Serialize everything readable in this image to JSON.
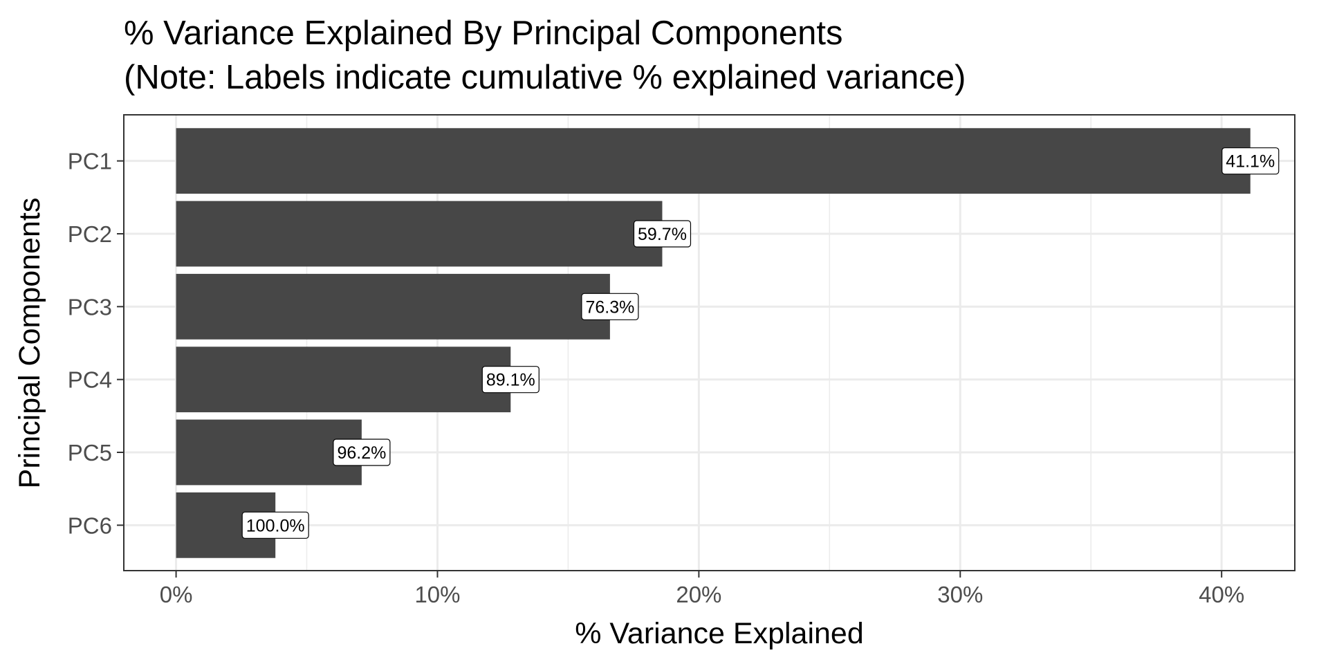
{
  "chart_data": {
    "type": "bar",
    "orientation": "horizontal",
    "title": "% Variance Explained By Principal Components",
    "subtitle": "(Note: Labels indicate cumulative % explained variance)",
    "xlabel": "% Variance Explained",
    "ylabel": "Principal Components",
    "categories": [
      "PC1",
      "PC2",
      "PC3",
      "PC4",
      "PC5",
      "PC6"
    ],
    "values": [
      41.1,
      18.6,
      16.6,
      12.8,
      7.1,
      3.8
    ],
    "labels": [
      "41.1%",
      "59.7%",
      "76.3%",
      "89.1%",
      "96.2%",
      "100.0%"
    ],
    "xlim": [
      -2,
      42.8
    ],
    "xticks": [
      0,
      10,
      20,
      30,
      40
    ],
    "xtick_labels": [
      "0%",
      "10%",
      "20%",
      "30%",
      "40%"
    ],
    "grid": true,
    "bar_color": "#474747",
    "grid_color": "#ebebeb",
    "panel_border_color": "#333333"
  }
}
